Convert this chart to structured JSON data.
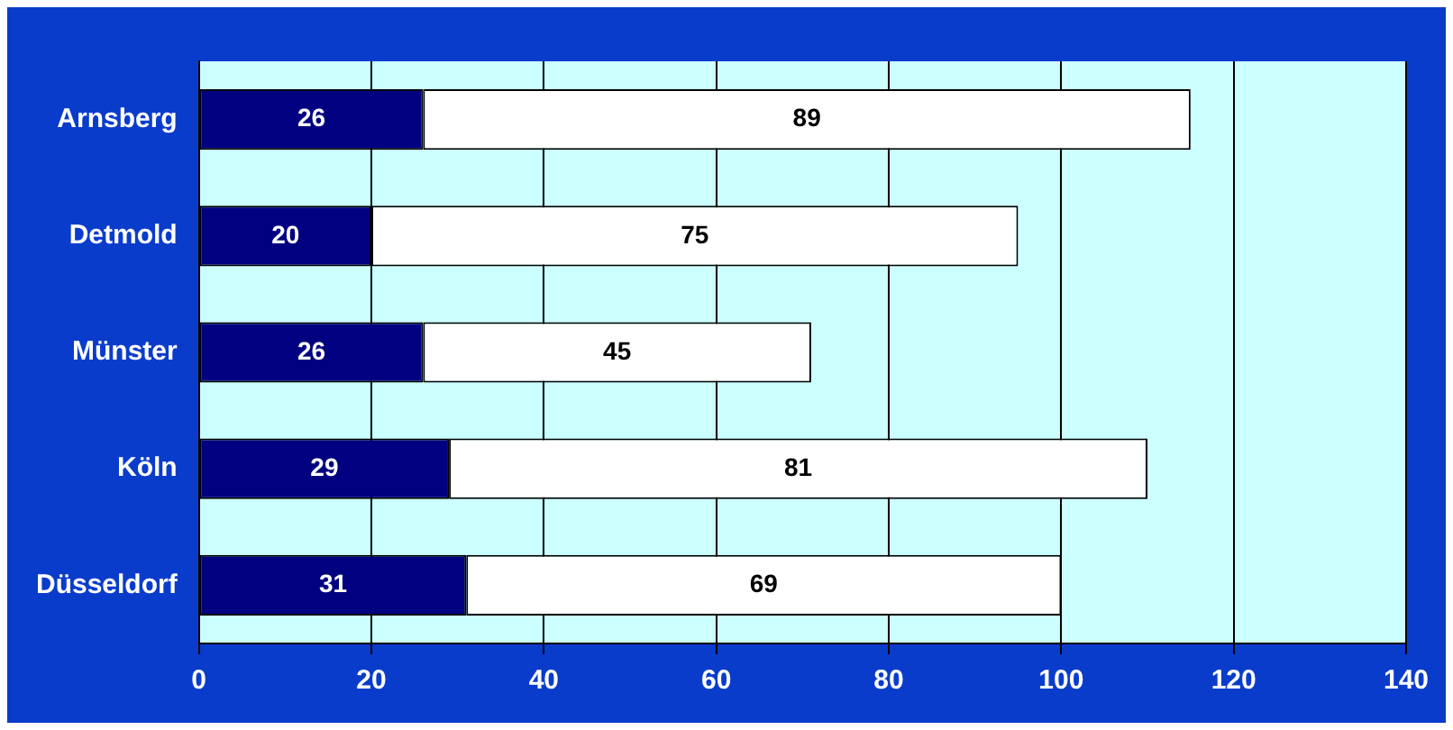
{
  "chart_data": {
    "type": "bar",
    "orientation": "horizontal",
    "stacked": true,
    "categories": [
      "Arnsberg",
      "Detmold",
      "Münster",
      "Köln",
      "Düsseldorf"
    ],
    "series": [
      {
        "color": "#000080",
        "values": [
          26,
          20,
          26,
          29,
          31
        ]
      },
      {
        "color": "#ffffff",
        "values": [
          89,
          75,
          45,
          81,
          69
        ]
      }
    ],
    "xlim": [
      0,
      140
    ],
    "xticks": [
      0,
      20,
      40,
      60,
      80,
      100,
      120,
      140
    ],
    "grid": "x",
    "data_labels": true,
    "legend": false
  }
}
